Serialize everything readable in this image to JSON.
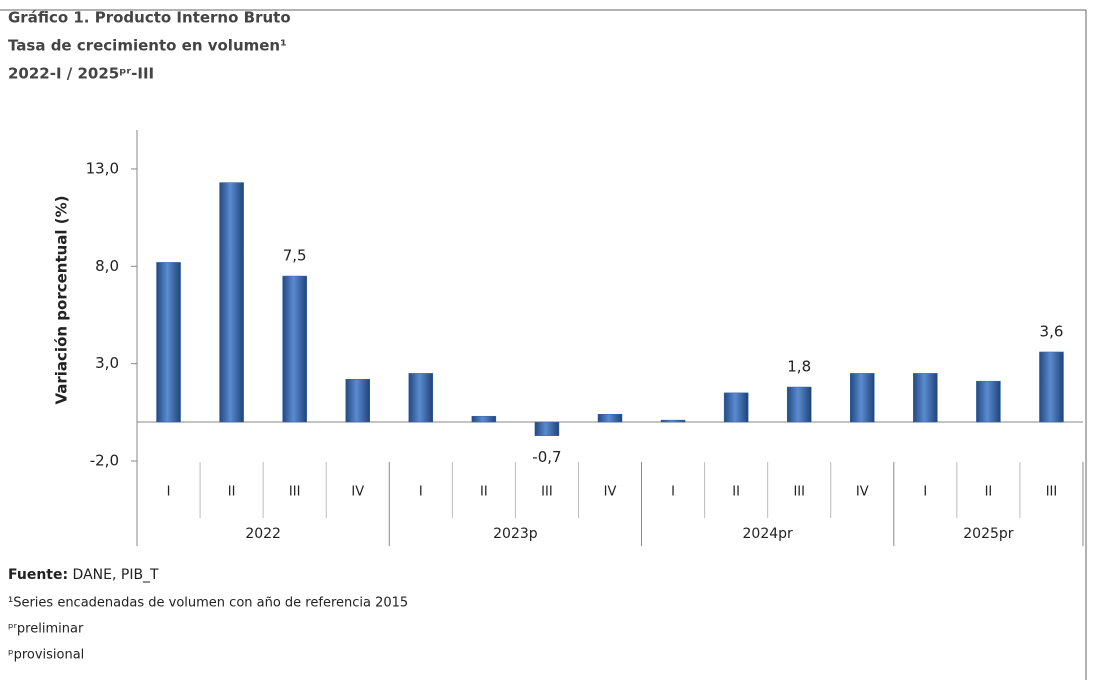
{
  "chart_data": {
    "type": "bar",
    "title": "Gráfico 1. Producto Interno Bruto",
    "subtitle": "Tasa de crecimiento en volumen¹",
    "period": "2022-I / 2025ᵖʳ-III",
    "y_label": "Variación porcentual (%)",
    "groups": [
      {
        "label": "2022",
        "categories": [
          "I",
          "II",
          "III",
          "IV"
        ]
      },
      {
        "label": "2023p",
        "categories": [
          "I",
          "II",
          "III",
          "IV"
        ]
      },
      {
        "label": "2024pr",
        "categories": [
          "I",
          "II",
          "III",
          "IV"
        ]
      },
      {
        "label": "2025pr",
        "categories": [
          "I",
          "II",
          "III"
        ]
      }
    ],
    "values": [
      8.2,
      12.3,
      7.5,
      2.2,
      2.5,
      0.3,
      -0.7,
      0.4,
      0.1,
      1.5,
      1.8,
      2.5,
      2.5,
      2.1,
      3.6
    ],
    "value_labels": [
      null,
      null,
      "7,5",
      null,
      null,
      null,
      "-0,7",
      null,
      null,
      null,
      "1,8",
      null,
      null,
      null,
      "3,6"
    ],
    "color": "#3562a4",
    "ylim": [
      -2,
      15
    ],
    "yticks": [
      {
        "value": -2,
        "label": "-2,0"
      },
      {
        "value": 3,
        "label": "3,0"
      },
      {
        "value": 8,
        "label": "8,0"
      },
      {
        "value": 13,
        "label": "13,0"
      }
    ],
    "source_label": "Fuente:",
    "source": " DANE, PIB_T",
    "notes": [
      "¹Series encadenadas de volumen con año de referencia 2015",
      "ᵖʳpreliminar",
      "ᵖprovisional"
    ]
  }
}
